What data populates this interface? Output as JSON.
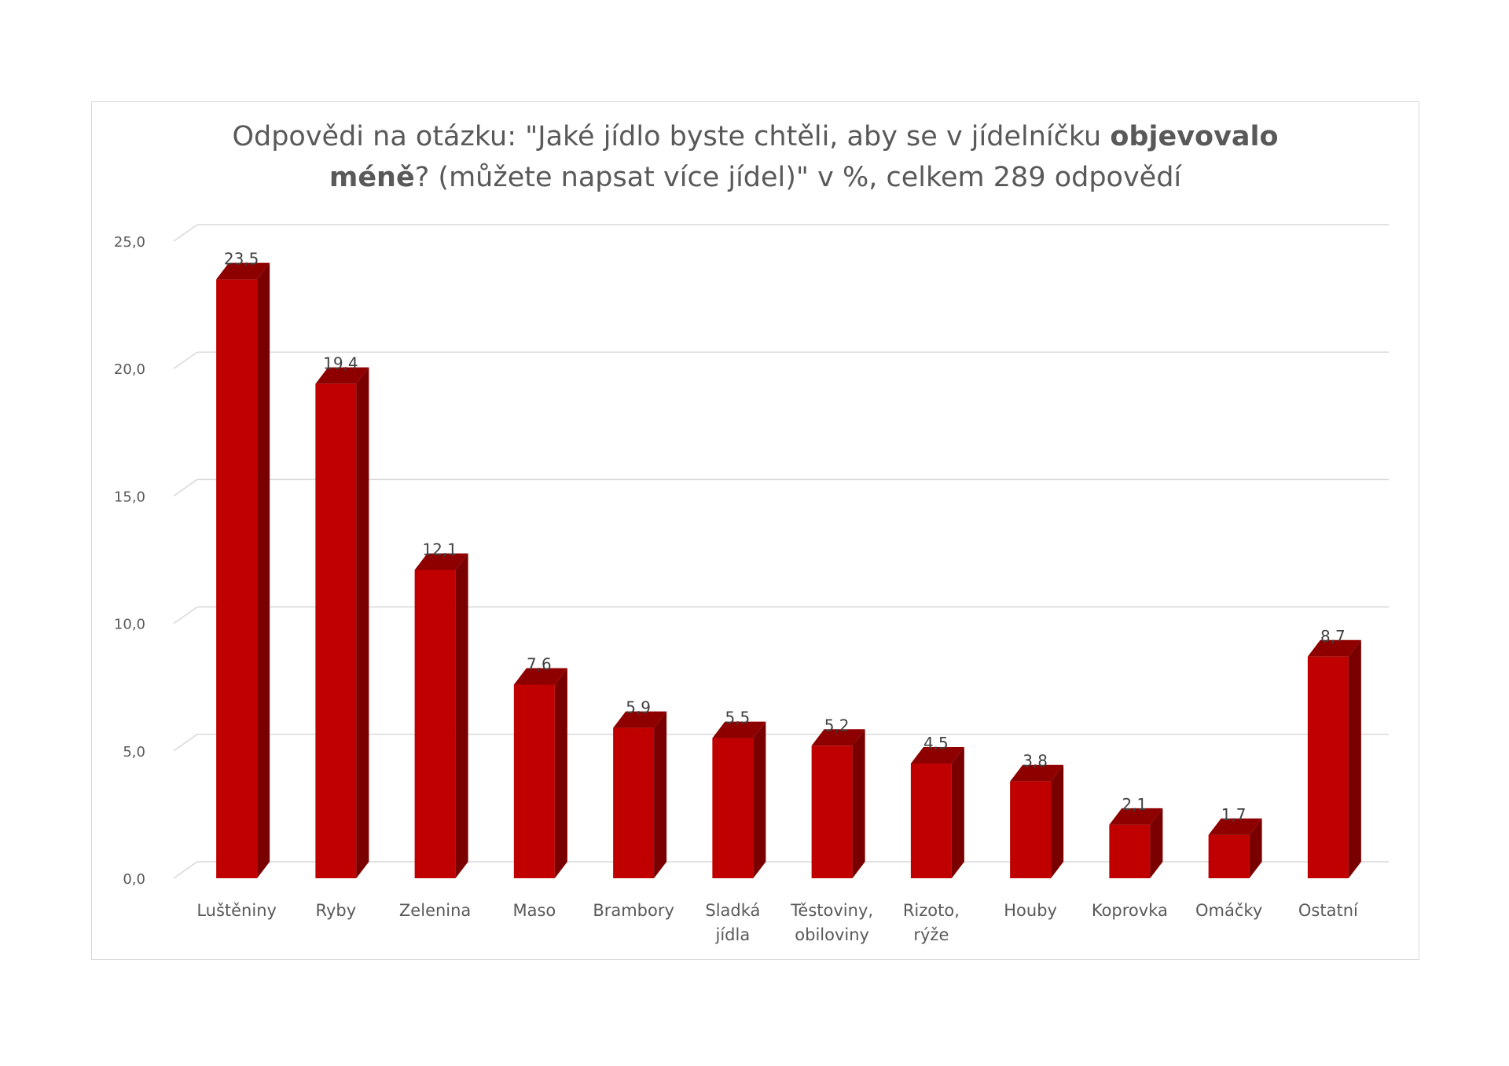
{
  "chart_data": {
    "type": "bar",
    "title_parts": [
      "Odpovědi na otázku: \"Jaké jídlo byste chtěli, aby se v jídelníčku ",
      "objevovalo",
      "méně",
      "? (můžete napsat více jídel)\" v %, celkem 289 odpovědí"
    ],
    "categories": [
      [
        "Luštěniny"
      ],
      [
        "Ryby"
      ],
      [
        "Zelenina"
      ],
      [
        "Maso"
      ],
      [
        "Brambory"
      ],
      [
        "Sladká",
        "jídla"
      ],
      [
        "Těstoviny,",
        "obiloviny"
      ],
      [
        "Rizoto,",
        "rýže"
      ],
      [
        "Houby"
      ],
      [
        "Koprovka"
      ],
      [
        "Omáčky"
      ],
      [
        "Ostatní"
      ]
    ],
    "values": [
      23.5,
      19.4,
      12.1,
      7.6,
      5.9,
      5.5,
      5.2,
      4.5,
      3.8,
      2.1,
      1.7,
      8.7
    ],
    "value_labels": [
      "23,5",
      "19,4",
      "12,1",
      "7,6",
      "5,9",
      "5,5",
      "5,2",
      "4,5",
      "3,8",
      "2,1",
      "1,7",
      "8,7"
    ],
    "yticks": [
      0,
      5,
      10,
      15,
      20,
      25
    ],
    "ytick_labels": [
      "0,0",
      "5,0",
      "10,0",
      "15,0",
      "20,0",
      "25,0"
    ],
    "ylim": [
      0,
      25
    ],
    "grid": true,
    "style": "3d-column",
    "colors": {
      "front": "#c00000",
      "side": "#7a0000",
      "top": "#8e0000",
      "grid": "#d9d9d9"
    }
  }
}
